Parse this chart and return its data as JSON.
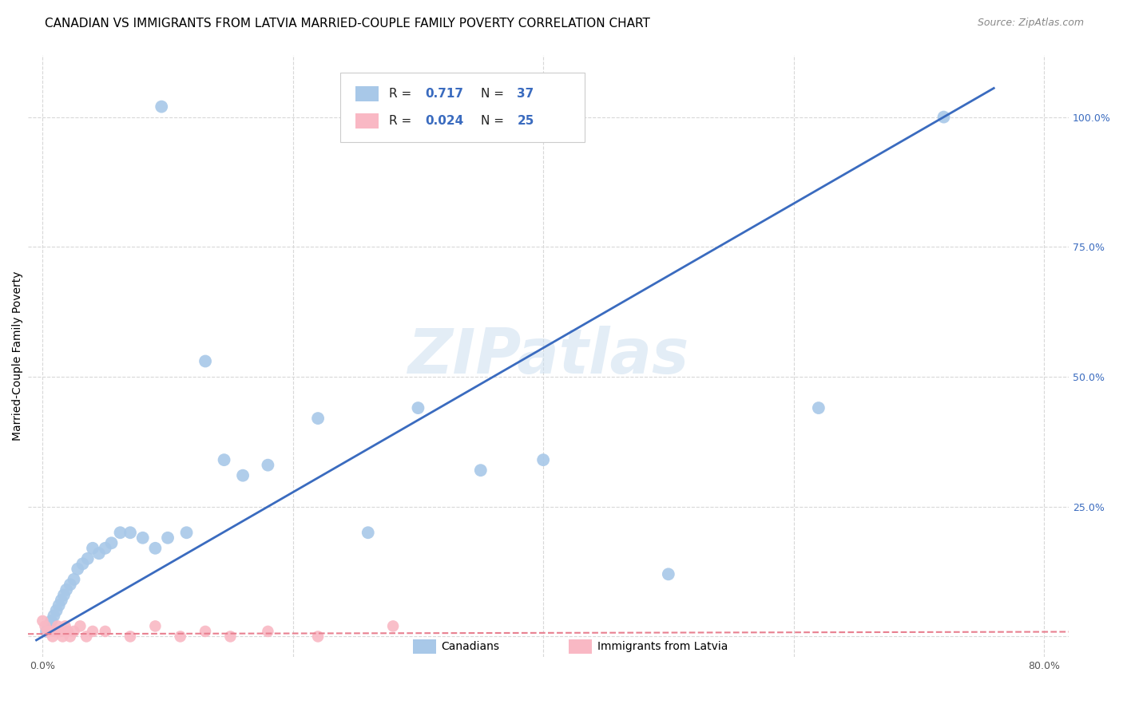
{
  "title": "CANADIAN VS IMMIGRANTS FROM LATVIA MARRIED-COUPLE FAMILY POVERTY CORRELATION CHART",
  "source": "Source: ZipAtlas.com",
  "ylabel": "Married-Couple Family Poverty",
  "x_ticks": [
    0.0,
    0.2,
    0.4,
    0.6,
    0.8
  ],
  "x_tick_labels": [
    "0.0%",
    "",
    "",
    "",
    "80.0%"
  ],
  "y_ticks_right": [
    0.0,
    0.25,
    0.5,
    0.75,
    1.0
  ],
  "y_tick_labels_right": [
    "",
    "25.0%",
    "50.0%",
    "75.0%",
    "100.0%"
  ],
  "blue_x": [
    0.003,
    0.005,
    0.007,
    0.009,
    0.011,
    0.013,
    0.015,
    0.017,
    0.019,
    0.022,
    0.025,
    0.028,
    0.032,
    0.036,
    0.04,
    0.045,
    0.05,
    0.055,
    0.062,
    0.07,
    0.08,
    0.09,
    0.1,
    0.115,
    0.13,
    0.145,
    0.16,
    0.18,
    0.22,
    0.26,
    0.3,
    0.35,
    0.4,
    0.5,
    0.62,
    0.72,
    0.095
  ],
  "blue_y": [
    0.01,
    0.02,
    0.03,
    0.04,
    0.05,
    0.06,
    0.07,
    0.08,
    0.09,
    0.1,
    0.11,
    0.13,
    0.14,
    0.15,
    0.17,
    0.16,
    0.17,
    0.18,
    0.2,
    0.2,
    0.19,
    0.17,
    0.19,
    0.2,
    0.53,
    0.34,
    0.31,
    0.33,
    0.42,
    0.2,
    0.44,
    0.32,
    0.34,
    0.12,
    0.44,
    1.0,
    1.02
  ],
  "pink_x": [
    0.0,
    0.002,
    0.004,
    0.006,
    0.008,
    0.01,
    0.012,
    0.014,
    0.016,
    0.018,
    0.02,
    0.022,
    0.025,
    0.03,
    0.035,
    0.04,
    0.05,
    0.07,
    0.09,
    0.11,
    0.13,
    0.15,
    0.18,
    0.22,
    0.28
  ],
  "pink_y": [
    0.03,
    0.02,
    0.01,
    0.01,
    0.0,
    0.01,
    0.02,
    0.01,
    0.0,
    0.02,
    0.01,
    0.0,
    0.01,
    0.02,
    0.0,
    0.01,
    0.01,
    0.0,
    0.02,
    0.0,
    0.01,
    0.0,
    0.01,
    0.0,
    0.02
  ],
  "trend_blue_x0": 0.0,
  "trend_blue_y0": 0.0,
  "trend_blue_x1": 0.72,
  "trend_blue_y1": 1.0,
  "trend_pink_slope": 0.005,
  "trend_pink_intercept": 0.005,
  "canadian_color": "#a8c8e8",
  "latvia_color": "#f9b8c4",
  "trend_blue_color": "#3a6bbf",
  "trend_pink_color": "#e88090",
  "background_color": "#ffffff",
  "grid_color": "#d8d8d8",
  "watermark": "ZIPatlas",
  "title_fontsize": 11,
  "axis_label_fontsize": 10,
  "tick_fontsize": 9,
  "legend_r_color": "#3a6bbf",
  "legend_n_color": "#3a6bbf",
  "legend_label_color": "#222222"
}
